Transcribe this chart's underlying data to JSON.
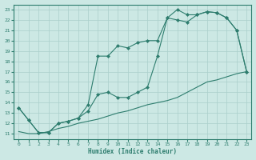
{
  "xlabel": "Humidex (Indice chaleur)",
  "bg_color": "#cce8e4",
  "grid_color": "#aacfcb",
  "line_color": "#2e7d6e",
  "xlim": [
    -0.5,
    23.5
  ],
  "ylim": [
    10.5,
    23.5
  ],
  "yticks": [
    11,
    12,
    13,
    14,
    15,
    16,
    17,
    18,
    19,
    20,
    21,
    22,
    23
  ],
  "xticks": [
    0,
    1,
    2,
    3,
    4,
    5,
    6,
    7,
    8,
    9,
    10,
    11,
    12,
    13,
    14,
    15,
    16,
    17,
    18,
    19,
    20,
    21,
    22,
    23
  ],
  "line1_x": [
    0,
    1,
    2,
    3,
    4,
    5,
    6,
    7,
    8,
    9,
    10,
    11,
    12,
    13,
    14,
    15,
    16,
    17,
    18,
    19,
    20,
    21,
    22,
    23
  ],
  "line1_y": [
    13.5,
    12.3,
    11.1,
    11.1,
    12.0,
    12.2,
    12.5,
    13.8,
    18.5,
    18.5,
    19.5,
    19.3,
    19.8,
    20.0,
    20.0,
    22.2,
    22.0,
    21.8,
    22.5,
    22.8,
    22.7,
    22.2,
    21.0,
    17.0
  ],
  "line2_x": [
    0,
    1,
    2,
    3,
    4,
    5,
    6,
    7,
    8,
    9,
    10,
    11,
    12,
    13,
    14,
    15,
    16,
    17,
    18,
    19,
    20,
    21,
    22,
    23
  ],
  "line2_y": [
    13.5,
    12.3,
    11.1,
    11.1,
    12.0,
    12.2,
    12.5,
    13.2,
    14.8,
    15.0,
    14.5,
    14.5,
    15.0,
    15.5,
    18.5,
    22.2,
    23.0,
    22.5,
    22.5,
    22.8,
    22.7,
    22.2,
    21.0,
    17.0
  ],
  "line3_x": [
    0,
    1,
    2,
    3,
    4,
    5,
    6,
    7,
    8,
    9,
    10,
    11,
    12,
    13,
    14,
    15,
    16,
    17,
    18,
    19,
    20,
    21,
    22,
    23
  ],
  "line3_y": [
    11.2,
    11.0,
    11.0,
    11.2,
    11.5,
    11.7,
    12.0,
    12.2,
    12.4,
    12.7,
    13.0,
    13.2,
    13.5,
    13.8,
    14.0,
    14.2,
    14.5,
    15.0,
    15.5,
    16.0,
    16.2,
    16.5,
    16.8,
    17.0
  ]
}
